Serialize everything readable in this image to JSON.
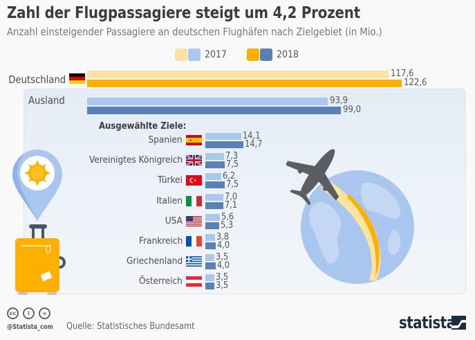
{
  "header": {
    "title": "Zahl der Flugpassagiere steigt um 4,2 Prozent",
    "subtitle": "Anzahl einsteigender Passagiere an deutschen Flughäfen nach Zielgebiet (in Mio.)"
  },
  "colors": {
    "de_2017": "#fde3a0",
    "de_2018": "#fdb000",
    "ab_2017": "#abc8ec",
    "ab_2018": "#5b80b5",
    "panel_bg": "#e8eef8",
    "brand": "#1b2c3e"
  },
  "chart_data": {
    "type": "bar",
    "orientation": "horizontal",
    "title": "Zahl der Flugpassagiere steigt um 4,2 Prozent",
    "subtitle": "Anzahl einsteigender Passagiere an deutschen Flughäfen nach Zielgebiet (in Mio.)",
    "unit": "Mio.",
    "legend": {
      "placement": "top-center",
      "entries": [
        {
          "label": "2017",
          "colors": [
            "#fde3a0",
            "#abc8ec"
          ]
        },
        {
          "label": "2018",
          "colors": [
            "#fdb000",
            "#5b80b5"
          ]
        }
      ]
    },
    "series_names": [
      "2017",
      "2018"
    ],
    "main": [
      {
        "category": "Deutschland",
        "flag": "germany-flag",
        "values": [
          117.6,
          122.6
        ],
        "labels": [
          "117,6",
          "122,6"
        ],
        "palette": "yellow"
      },
      {
        "category": "Ausland",
        "flag": null,
        "values": [
          93.9,
          99.0
        ],
        "labels": [
          "93,9",
          "99,0"
        ],
        "palette": "blue"
      }
    ],
    "selected_heading": "Ausgewählte Ziele:",
    "selected": [
      {
        "category": "Spanien",
        "flag": "spain-flag",
        "values": [
          14.1,
          14.7
        ],
        "labels": [
          "14,1",
          "14,7"
        ]
      },
      {
        "category": "Vereinigtes Königreich",
        "flag": "uk-flag",
        "values": [
          7.3,
          7.5
        ],
        "labels": [
          "7,3",
          "7,5"
        ]
      },
      {
        "category": "Türkei",
        "flag": "turkey-flag",
        "values": [
          6.2,
          7.5
        ],
        "labels": [
          "6,2",
          "7,5"
        ]
      },
      {
        "category": "Italien",
        "flag": "italy-flag",
        "values": [
          7.0,
          7.1
        ],
        "labels": [
          "7,0",
          "7,1"
        ]
      },
      {
        "category": "USA",
        "flag": "usa-flag",
        "values": [
          5.6,
          5.3
        ],
        "labels": [
          "5,6",
          "5,3"
        ]
      },
      {
        "category": "Frankreich",
        "flag": "france-flag",
        "values": [
          3.8,
          4.0
        ],
        "labels": [
          "3,8",
          "4,0"
        ]
      },
      {
        "category": "Griechenland",
        "flag": "greece-flag",
        "values": [
          3.5,
          4.0
        ],
        "labels": [
          "3,5",
          "4,0"
        ]
      },
      {
        "category": "Österreich",
        "flag": "austria-flag",
        "values": [
          3.5,
          3.5
        ],
        "labels": [
          "3,5",
          "3,5"
        ]
      }
    ],
    "xlim": [
      0,
      130
    ],
    "grid": false
  },
  "footer": {
    "license_icons": [
      "cc-icon",
      "by-icon",
      "nd-icon"
    ],
    "license_glyphs": [
      "cc",
      "i",
      "="
    ],
    "handle": "@Statista_com",
    "source": "Quelle: Statistisches Bundesamt",
    "brand": "statista"
  }
}
